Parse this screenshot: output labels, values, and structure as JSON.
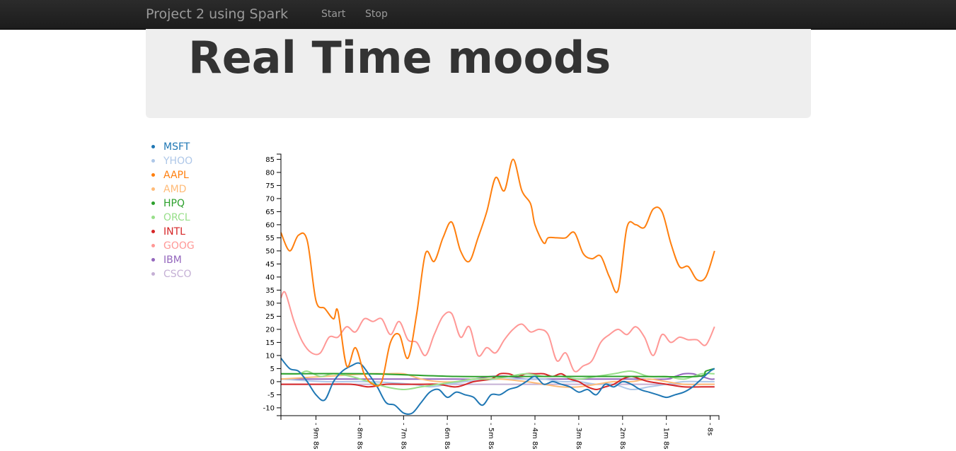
{
  "navbar": {
    "brand": "Project 2 using Spark",
    "links": [
      "Start",
      "Stop"
    ]
  },
  "hero": {
    "title": "Real Time moods"
  },
  "legend": [
    {
      "name": "MSFT",
      "color": "#1f77b4"
    },
    {
      "name": "YHOO",
      "color": "#aec7e8"
    },
    {
      "name": "AAPL",
      "color": "#ff7f0e"
    },
    {
      "name": "AMD",
      "color": "#ffbb78"
    },
    {
      "name": "HPQ",
      "color": "#2ca02c"
    },
    {
      "name": "ORCL",
      "color": "#98df8a"
    },
    {
      "name": "INTL",
      "color": "#d62728"
    },
    {
      "name": "GOOG",
      "color": "#ff9896"
    },
    {
      "name": "IBM",
      "color": "#9467bd"
    },
    {
      "name": "CSCO",
      "color": "#c5b0d5"
    }
  ],
  "chart_data": {
    "type": "line",
    "ylim": [
      -13,
      87
    ],
    "yticks": [
      -10,
      -5,
      0,
      5,
      10,
      15,
      20,
      25,
      30,
      35,
      40,
      45,
      50,
      55,
      60,
      65,
      70,
      75,
      80,
      85
    ],
    "xlim": [
      0,
      100
    ],
    "xticks": [
      {
        "x": 8,
        "label": "- 9m 8s"
      },
      {
        "x": 18,
        "label": "- 8m 8s"
      },
      {
        "x": 28,
        "label": "- 7m 8s"
      },
      {
        "x": 38,
        "label": "- 6m 8s"
      },
      {
        "x": 48,
        "label": "- 5m 8s"
      },
      {
        "x": 58,
        "label": "- 4m 8s"
      },
      {
        "x": 68,
        "label": "- 3m 8s"
      },
      {
        "x": 78,
        "label": "- 2m 8s"
      },
      {
        "x": 88,
        "label": "- 1m 8s"
      },
      {
        "x": 98,
        "label": "- 8s"
      }
    ],
    "series": [
      {
        "name": "AAPL",
        "color": "#ff7f0e",
        "points": [
          [
            0,
            57
          ],
          [
            2,
            50
          ],
          [
            4,
            56
          ],
          [
            6,
            54
          ],
          [
            8,
            31
          ],
          [
            10,
            28
          ],
          [
            12,
            24
          ],
          [
            13,
            27
          ],
          [
            15,
            6
          ],
          [
            17,
            13
          ],
          [
            19,
            3
          ],
          [
            21,
            -1
          ],
          [
            23,
            0
          ],
          [
            25,
            15
          ],
          [
            27,
            18
          ],
          [
            29,
            9
          ],
          [
            31,
            26
          ],
          [
            33,
            49
          ],
          [
            35,
            46
          ],
          [
            37,
            55
          ],
          [
            39,
            61
          ],
          [
            41,
            50
          ],
          [
            43,
            46
          ],
          [
            45,
            55
          ],
          [
            47,
            65
          ],
          [
            49,
            78
          ],
          [
            51,
            73
          ],
          [
            53,
            85
          ],
          [
            55,
            73
          ],
          [
            57,
            68
          ],
          [
            58,
            60
          ],
          [
            60,
            53
          ],
          [
            61,
            55
          ],
          [
            63,
            55
          ],
          [
            65,
            55
          ],
          [
            67,
            57
          ],
          [
            69,
            49
          ],
          [
            71,
            47
          ],
          [
            73,
            48
          ],
          [
            75,
            40
          ],
          [
            77,
            35
          ],
          [
            79,
            59
          ],
          [
            81,
            60
          ],
          [
            83,
            59
          ],
          [
            85,
            66
          ],
          [
            87,
            65
          ],
          [
            89,
            53
          ],
          [
            91,
            44
          ],
          [
            93,
            44
          ],
          [
            95,
            39
          ],
          [
            97,
            40
          ],
          [
            99,
            50
          ]
        ]
      },
      {
        "name": "GOOG",
        "color": "#ff9896",
        "points": [
          [
            0,
            32
          ],
          [
            1,
            34
          ],
          [
            3,
            23
          ],
          [
            5,
            15
          ],
          [
            7,
            11
          ],
          [
            9,
            11
          ],
          [
            11,
            17
          ],
          [
            13,
            17
          ],
          [
            15,
            21
          ],
          [
            17,
            19
          ],
          [
            19,
            24
          ],
          [
            21,
            23
          ],
          [
            23,
            24
          ],
          [
            25,
            18
          ],
          [
            27,
            23
          ],
          [
            29,
            16
          ],
          [
            31,
            15
          ],
          [
            33,
            10
          ],
          [
            35,
            18
          ],
          [
            37,
            25
          ],
          [
            39,
            26
          ],
          [
            41,
            17
          ],
          [
            43,
            21
          ],
          [
            45,
            10
          ],
          [
            47,
            13
          ],
          [
            49,
            11
          ],
          [
            51,
            16
          ],
          [
            53,
            20
          ],
          [
            55,
            22
          ],
          [
            57,
            19
          ],
          [
            59,
            20
          ],
          [
            61,
            18
          ],
          [
            63,
            8
          ],
          [
            65,
            11
          ],
          [
            67,
            4
          ],
          [
            69,
            6
          ],
          [
            71,
            8
          ],
          [
            73,
            15
          ],
          [
            75,
            18
          ],
          [
            77,
            20
          ],
          [
            79,
            18
          ],
          [
            81,
            21
          ],
          [
            83,
            17
          ],
          [
            85,
            10
          ],
          [
            87,
            18
          ],
          [
            89,
            15
          ],
          [
            91,
            17
          ],
          [
            93,
            16
          ],
          [
            95,
            16
          ],
          [
            97,
            14
          ],
          [
            99,
            21
          ]
        ]
      },
      {
        "name": "MSFT",
        "color": "#1f77b4",
        "points": [
          [
            0,
            9
          ],
          [
            2,
            5
          ],
          [
            4,
            4
          ],
          [
            6,
            0
          ],
          [
            8,
            -5
          ],
          [
            10,
            -7
          ],
          [
            12,
            0
          ],
          [
            14,
            4
          ],
          [
            16,
            6
          ],
          [
            18,
            7
          ],
          [
            20,
            3
          ],
          [
            22,
            -2
          ],
          [
            24,
            -8
          ],
          [
            26,
            -9
          ],
          [
            28,
            -12
          ],
          [
            30,
            -12
          ],
          [
            32,
            -8
          ],
          [
            34,
            -4
          ],
          [
            36,
            -3
          ],
          [
            38,
            -6
          ],
          [
            40,
            -4
          ],
          [
            42,
            -5
          ],
          [
            44,
            -6
          ],
          [
            46,
            -9
          ],
          [
            48,
            -5
          ],
          [
            50,
            -5
          ],
          [
            52,
            -3
          ],
          [
            54,
            -2
          ],
          [
            56,
            0
          ],
          [
            58,
            2
          ],
          [
            60,
            -1
          ],
          [
            62,
            0
          ],
          [
            64,
            -1
          ],
          [
            66,
            -2
          ],
          [
            68,
            -4
          ],
          [
            70,
            -3
          ],
          [
            72,
            -5
          ],
          [
            74,
            -1
          ],
          [
            76,
            -2
          ],
          [
            78,
            0
          ],
          [
            80,
            -1
          ],
          [
            82,
            -3
          ],
          [
            84,
            -4
          ],
          [
            86,
            -5
          ],
          [
            88,
            -6
          ],
          [
            90,
            -5
          ],
          [
            92,
            -4
          ],
          [
            94,
            -2
          ],
          [
            96,
            1
          ],
          [
            98,
            4
          ],
          [
            99,
            5
          ]
        ]
      },
      {
        "name": "HPQ",
        "color": "#2ca02c",
        "points": [
          [
            0,
            3
          ],
          [
            20,
            3
          ],
          [
            40,
            2
          ],
          [
            60,
            2
          ],
          [
            80,
            2
          ],
          [
            95,
            2
          ],
          [
            97,
            4
          ],
          [
            99,
            5
          ]
        ]
      },
      {
        "name": "ORCL",
        "color": "#98df8a",
        "points": [
          [
            0,
            3
          ],
          [
            4,
            3
          ],
          [
            6,
            4
          ],
          [
            9,
            2
          ],
          [
            12,
            3
          ],
          [
            16,
            2
          ],
          [
            20,
            0
          ],
          [
            24,
            -2
          ],
          [
            28,
            -3
          ],
          [
            32,
            -2
          ],
          [
            36,
            -1
          ],
          [
            40,
            0
          ],
          [
            44,
            1
          ],
          [
            48,
            1
          ],
          [
            52,
            2
          ],
          [
            56,
            3
          ],
          [
            60,
            2
          ],
          [
            64,
            2
          ],
          [
            68,
            1
          ],
          [
            72,
            2
          ],
          [
            76,
            3
          ],
          [
            80,
            4
          ],
          [
            84,
            2
          ],
          [
            88,
            2
          ],
          [
            92,
            1
          ],
          [
            96,
            3
          ],
          [
            99,
            3
          ]
        ]
      },
      {
        "name": "INTL",
        "color": "#d62728",
        "points": [
          [
            0,
            -1
          ],
          [
            8,
            -1
          ],
          [
            16,
            -1
          ],
          [
            20,
            -2
          ],
          [
            24,
            -1
          ],
          [
            28,
            -1
          ],
          [
            32,
            -1
          ],
          [
            36,
            -1
          ],
          [
            40,
            -2
          ],
          [
            44,
            0
          ],
          [
            48,
            1
          ],
          [
            50,
            3
          ],
          [
            52,
            3
          ],
          [
            54,
            2
          ],
          [
            56,
            3
          ],
          [
            58,
            3
          ],
          [
            60,
            3
          ],
          [
            62,
            2
          ],
          [
            64,
            3
          ],
          [
            66,
            1
          ],
          [
            68,
            0
          ],
          [
            70,
            -2
          ],
          [
            72,
            -3
          ],
          [
            74,
            -2
          ],
          [
            76,
            -1
          ],
          [
            78,
            1
          ],
          [
            80,
            2
          ],
          [
            82,
            1
          ],
          [
            84,
            0
          ],
          [
            88,
            -1
          ],
          [
            92,
            -2
          ],
          [
            96,
            -2
          ],
          [
            99,
            -2
          ]
        ]
      },
      {
        "name": "AMD",
        "color": "#ffbb78",
        "points": [
          [
            0,
            1
          ],
          [
            10,
            2
          ],
          [
            20,
            3
          ],
          [
            24,
            3
          ],
          [
            28,
            3
          ],
          [
            32,
            1
          ],
          [
            36,
            0
          ],
          [
            40,
            0
          ],
          [
            44,
            1
          ],
          [
            50,
            1
          ],
          [
            56,
            0
          ],
          [
            60,
            -1
          ],
          [
            64,
            -2
          ],
          [
            68,
            -2
          ],
          [
            72,
            -1
          ],
          [
            76,
            0
          ],
          [
            80,
            0
          ],
          [
            84,
            1
          ],
          [
            88,
            0
          ],
          [
            92,
            -1
          ],
          [
            96,
            -1
          ],
          [
            99,
            -1
          ]
        ]
      },
      {
        "name": "YHOO",
        "color": "#aec7e8",
        "points": [
          [
            0,
            1
          ],
          [
            10,
            0
          ],
          [
            20,
            0
          ],
          [
            30,
            -1
          ],
          [
            34,
            -2
          ],
          [
            38,
            -1
          ],
          [
            42,
            0
          ],
          [
            50,
            1
          ],
          [
            56,
            1
          ],
          [
            60,
            1
          ],
          [
            64,
            0
          ],
          [
            68,
            0
          ],
          [
            72,
            -1
          ],
          [
            76,
            -1
          ],
          [
            80,
            -3
          ],
          [
            84,
            -2
          ],
          [
            88,
            -1
          ],
          [
            92,
            0
          ],
          [
            96,
            0
          ],
          [
            99,
            0
          ]
        ]
      },
      {
        "name": "IBM",
        "color": "#9467bd",
        "points": [
          [
            0,
            1
          ],
          [
            10,
            1
          ],
          [
            20,
            1
          ],
          [
            30,
            1
          ],
          [
            40,
            1
          ],
          [
            44,
            1
          ],
          [
            48,
            2
          ],
          [
            52,
            2
          ],
          [
            56,
            1
          ],
          [
            60,
            1
          ],
          [
            70,
            1
          ],
          [
            80,
            1
          ],
          [
            88,
            1
          ],
          [
            90,
            2
          ],
          [
            92,
            3
          ],
          [
            94,
            3
          ],
          [
            96,
            2
          ],
          [
            98,
            1
          ],
          [
            99,
            1
          ]
        ]
      },
      {
        "name": "CSCO",
        "color": "#c5b0d5",
        "points": [
          [
            0,
            -1
          ],
          [
            20,
            -1
          ],
          [
            40,
            -1
          ],
          [
            60,
            -1
          ],
          [
            80,
            -1
          ],
          [
            99,
            -1
          ]
        ]
      }
    ]
  }
}
